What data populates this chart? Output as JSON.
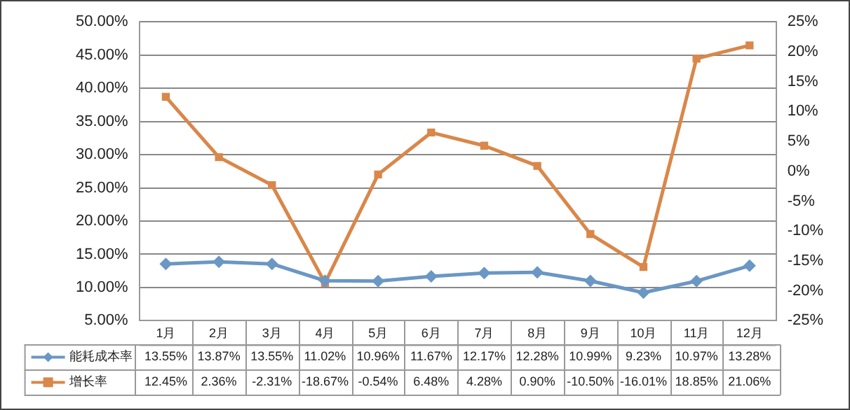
{
  "chart_data": {
    "type": "line",
    "categories": [
      "1月",
      "2月",
      "3月",
      "4月",
      "5月",
      "6月",
      "7月",
      "8月",
      "9月",
      "10月",
      "11月",
      "12月"
    ],
    "series": [
      {
        "name": "能耗成本率",
        "color": "#6a97c4",
        "marker": "diamond",
        "axis": "y",
        "values": [
          13.55,
          13.87,
          13.55,
          11.02,
          10.96,
          11.67,
          12.17,
          12.28,
          10.99,
          9.23,
          10.97,
          13.28
        ],
        "value_labels": [
          "13.55%",
          "13.87%",
          "13.55%",
          "11.02%",
          "10.96%",
          "11.67%",
          "12.17%",
          "12.28%",
          "10.99%",
          "9.23%",
          "10.97%",
          "13.28%"
        ]
      },
      {
        "name": "增长率",
        "color": "#d9874a",
        "marker": "square",
        "axis": "y2",
        "values": [
          12.45,
          2.36,
          -2.31,
          -18.67,
          -0.54,
          6.48,
          4.28,
          0.9,
          -10.5,
          -16.01,
          18.85,
          21.06
        ],
        "value_labels": [
          "12.45%",
          "2.36%",
          "-2.31%",
          "-18.67%",
          "-0.54%",
          "6.48%",
          "4.28%",
          "0.90%",
          "-10.50%",
          "-16.01%",
          "18.85%",
          "21.06%"
        ]
      }
    ],
    "ylim": [
      5,
      50
    ],
    "yticks": [
      {
        "value": 5,
        "label": "5.00%"
      },
      {
        "value": 10,
        "label": "10.00%"
      },
      {
        "value": 15,
        "label": "15.00%"
      },
      {
        "value": 20,
        "label": "20.00%"
      },
      {
        "value": 25,
        "label": "25.00%"
      },
      {
        "value": 30,
        "label": "30.00%"
      },
      {
        "value": 35,
        "label": "35.00%"
      },
      {
        "value": 40,
        "label": "40.00%"
      },
      {
        "value": 45,
        "label": "45.00%"
      },
      {
        "value": 50,
        "label": "50.00%"
      }
    ],
    "y2lim": [
      -25,
      25
    ],
    "y2ticks": [
      {
        "value": -25,
        "label": "-25%"
      },
      {
        "value": -20,
        "label": "-20%"
      },
      {
        "value": -15,
        "label": "-15%"
      },
      {
        "value": -10,
        "label": "-10%"
      },
      {
        "value": -5,
        "label": "-5%"
      },
      {
        "value": 0,
        "label": "0%"
      },
      {
        "value": 5,
        "label": "5%"
      },
      {
        "value": 10,
        "label": "10%"
      },
      {
        "value": 15,
        "label": "15%"
      },
      {
        "value": 20,
        "label": "20%"
      },
      {
        "value": 25,
        "label": "25%"
      }
    ],
    "grid": "y",
    "legend": "bottom left"
  }
}
